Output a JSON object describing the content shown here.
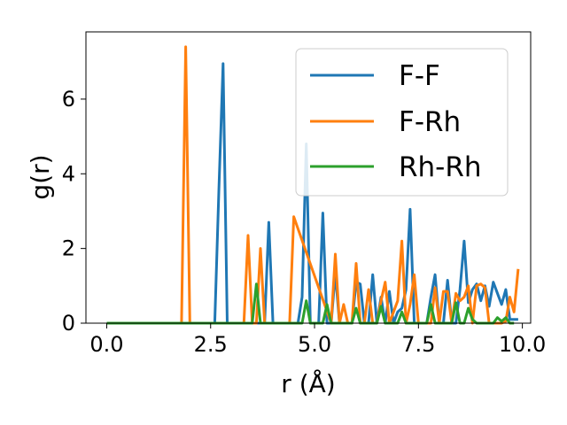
{
  "chart_data": {
    "type": "line",
    "title": "",
    "xlabel": "r (Å)",
    "ylabel": "g(r)",
    "xlim": [
      -0.5,
      10.2
    ],
    "ylim": [
      0,
      7.8
    ],
    "xticks": [
      "0.0",
      "2.5",
      "5.0",
      "7.5",
      "10.0"
    ],
    "xtick_values": [
      0,
      2.5,
      5,
      7.5,
      10
    ],
    "yticks": [
      "0",
      "2",
      "4",
      "6"
    ],
    "ytick_values": [
      0,
      2,
      4,
      6
    ],
    "grid": false,
    "legend_position": "upper-right",
    "series": [
      {
        "name": "F-F",
        "color": "#1f77b4",
        "x": [
          0.0,
          2.6,
          2.7,
          2.8,
          2.9,
          3.7,
          3.8,
          3.9,
          4.0,
          4.1,
          4.6,
          4.7,
          4.8,
          4.9,
          5.0,
          5.1,
          5.2,
          5.3,
          5.4,
          5.5,
          5.6,
          5.7,
          5.8,
          5.9,
          6.0,
          6.1,
          6.2,
          6.3,
          6.4,
          6.5,
          6.6,
          6.7,
          6.8,
          6.9,
          7.0,
          7.1,
          7.2,
          7.3,
          7.4,
          7.5,
          7.6,
          7.7,
          7.8,
          7.9,
          8.0,
          8.1,
          8.2,
          8.3,
          8.4,
          8.5,
          8.6,
          8.7,
          8.8,
          8.9,
          9.0,
          9.1,
          9.2,
          9.3,
          9.4,
          9.5,
          9.6,
          9.7,
          9.8,
          9.9
        ],
        "y": [
          0,
          0,
          3.6,
          6.95,
          0,
          0,
          0,
          2.7,
          0,
          0,
          0,
          0.7,
          4.8,
          0,
          0,
          0,
          2.95,
          0,
          0,
          1.35,
          0,
          0,
          0,
          0,
          1.1,
          1.05,
          0,
          0,
          1.3,
          0,
          0.7,
          0,
          0.85,
          0,
          0.3,
          0.4,
          0.9,
          3.05,
          0,
          0,
          0,
          0,
          0.7,
          1.3,
          0,
          0,
          1.15,
          0,
          0,
          0.9,
          2.2,
          0.55,
          0.9,
          1.05,
          0.6,
          1.0,
          0.45,
          1.1,
          0.8,
          0.5,
          0.9,
          0.1,
          0.1,
          0.1
        ]
      },
      {
        "name": "F-Rh",
        "color": "#ff7f0e",
        "x": [
          0.0,
          1.8,
          1.9,
          2.0,
          3.3,
          3.4,
          3.5,
          3.6,
          3.7,
          3.8,
          4.3,
          4.4,
          4.5,
          5.4,
          5.5,
          5.6,
          5.7,
          5.8,
          5.9,
          6.0,
          6.1,
          6.2,
          6.3,
          6.4,
          6.5,
          6.6,
          6.7,
          6.8,
          6.9,
          7.0,
          7.1,
          7.2,
          7.3,
          7.4,
          7.5,
          7.6,
          7.7,
          7.8,
          7.9,
          8.0,
          8.1,
          8.2,
          8.3,
          8.4,
          8.5,
          8.6,
          8.7,
          8.8,
          8.9,
          9.0,
          9.1,
          9.2,
          9.3,
          9.4,
          9.5,
          9.6,
          9.7,
          9.8,
          9.9
        ],
        "y": [
          0,
          0,
          7.4,
          0,
          0,
          2.35,
          0,
          0,
          2.0,
          0,
          0,
          0,
          2.85,
          0,
          1.85,
          0,
          0.5,
          0,
          0,
          1.6,
          0,
          0,
          0.9,
          0,
          0,
          0.6,
          1.1,
          0,
          0.3,
          0.6,
          2.2,
          0,
          0.5,
          1.3,
          0,
          0,
          0,
          0,
          0.95,
          0,
          0.85,
          0.85,
          0,
          0.8,
          0.6,
          0.7,
          1.0,
          0,
          1.0,
          1.05,
          0.95,
          0,
          0,
          0,
          0,
          0.05,
          0.7,
          0.3,
          1.45
        ]
      },
      {
        "name": "Rh-Rh",
        "color": "#2ca02c",
        "x": [
          0.0,
          3.5,
          3.6,
          3.7,
          3.8,
          4.7,
          4.8,
          4.9,
          5.2,
          5.3,
          5.4,
          5.9,
          6.0,
          6.1,
          6.5,
          6.6,
          6.7,
          7.0,
          7.1,
          7.2,
          7.7,
          7.8,
          7.9,
          8.3,
          8.4,
          8.5,
          8.6,
          8.7,
          8.8,
          8.9,
          9.3,
          9.4,
          9.5,
          9.6,
          9.7,
          9.8
        ],
        "y": [
          0,
          0,
          1.05,
          0,
          0,
          0,
          0.6,
          0,
          0,
          0.5,
          0,
          0,
          0.4,
          0,
          0,
          0.45,
          0,
          0,
          0.3,
          0,
          0,
          0.5,
          0,
          0,
          0.55,
          0,
          0,
          0.4,
          0.1,
          0,
          0,
          0.15,
          0.05,
          0.15,
          0,
          0
        ]
      }
    ]
  }
}
